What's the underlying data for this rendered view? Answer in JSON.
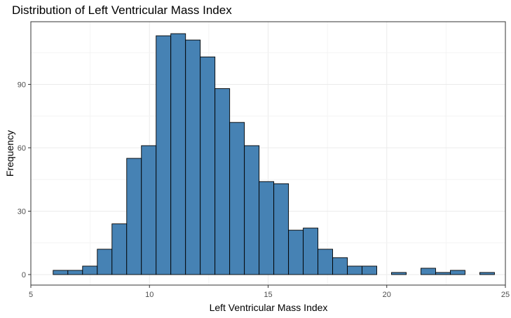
{
  "chart_data": {
    "type": "bar",
    "title": "Distribution of Left Ventricular Mass Index",
    "xlabel": "Left Ventricular Mass Index",
    "ylabel": "Frequency",
    "xlim": [
      5,
      25
    ],
    "ylim": [
      0,
      120
    ],
    "x_ticks": [
      5,
      10,
      15,
      20,
      25
    ],
    "y_ticks": [
      0,
      30,
      60,
      90
    ],
    "grid": true,
    "bar_fill": "#4682b4",
    "bar_outline": "#000000",
    "bins": [
      {
        "x0": 5.94,
        "x1": 6.56,
        "count": 2
      },
      {
        "x0": 6.56,
        "x1": 7.18,
        "count": 2
      },
      {
        "x0": 7.18,
        "x1": 7.8,
        "count": 4
      },
      {
        "x0": 7.8,
        "x1": 8.42,
        "count": 12
      },
      {
        "x0": 8.42,
        "x1": 9.04,
        "count": 24
      },
      {
        "x0": 9.04,
        "x1": 9.66,
        "count": 55
      },
      {
        "x0": 9.66,
        "x1": 10.28,
        "count": 61
      },
      {
        "x0": 10.28,
        "x1": 10.9,
        "count": 113
      },
      {
        "x0": 10.9,
        "x1": 11.52,
        "count": 114
      },
      {
        "x0": 11.52,
        "x1": 12.14,
        "count": 111
      },
      {
        "x0": 12.14,
        "x1": 12.76,
        "count": 103
      },
      {
        "x0": 12.76,
        "x1": 13.38,
        "count": 88
      },
      {
        "x0": 13.38,
        "x1": 14.0,
        "count": 72
      },
      {
        "x0": 14.0,
        "x1": 14.62,
        "count": 61
      },
      {
        "x0": 14.62,
        "x1": 15.24,
        "count": 44
      },
      {
        "x0": 15.24,
        "x1": 15.86,
        "count": 43
      },
      {
        "x0": 15.86,
        "x1": 16.48,
        "count": 21
      },
      {
        "x0": 16.48,
        "x1": 17.1,
        "count": 22
      },
      {
        "x0": 17.1,
        "x1": 17.72,
        "count": 12
      },
      {
        "x0": 17.72,
        "x1": 18.34,
        "count": 8
      },
      {
        "x0": 18.34,
        "x1": 18.96,
        "count": 4
      },
      {
        "x0": 18.96,
        "x1": 19.58,
        "count": 4
      },
      {
        "x0": 19.58,
        "x1": 20.2,
        "count": 0
      },
      {
        "x0": 20.2,
        "x1": 20.82,
        "count": 1
      },
      {
        "x0": 20.82,
        "x1": 21.44,
        "count": 0
      },
      {
        "x0": 21.44,
        "x1": 22.06,
        "count": 3
      },
      {
        "x0": 22.06,
        "x1": 22.68,
        "count": 1
      },
      {
        "x0": 22.68,
        "x1": 23.3,
        "count": 2
      },
      {
        "x0": 23.3,
        "x1": 23.92,
        "count": 0
      },
      {
        "x0": 23.92,
        "x1": 24.54,
        "count": 1
      }
    ]
  }
}
